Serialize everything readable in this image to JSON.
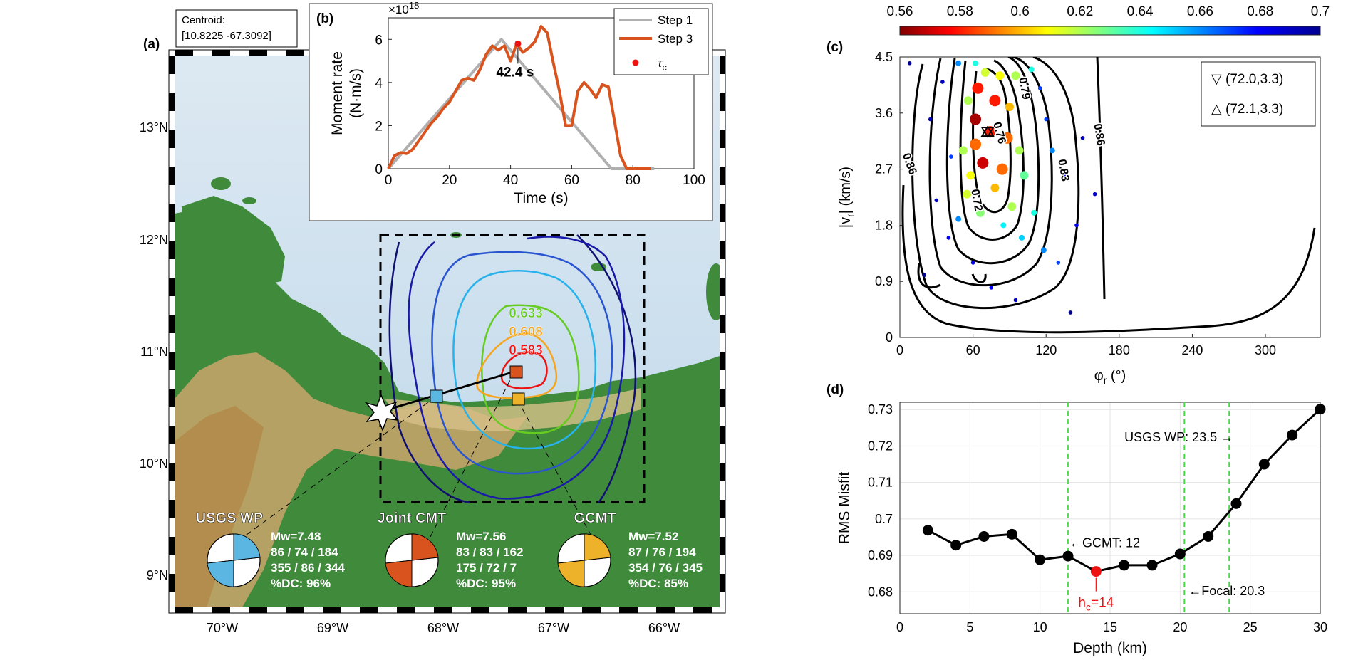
{
  "panel_a": {
    "label": "(a)",
    "centroid_label": "Centroid:",
    "centroid_value": "[10.8225  -67.3092]",
    "lat_ticks": [
      "13°N",
      "12°N",
      "11°N",
      "10°N",
      "9°N"
    ],
    "lon_ticks": [
      "70°W",
      "69°W",
      "68°W",
      "67°W",
      "66°W"
    ],
    "contour_labels": [
      {
        "text": "0.633",
        "color": "#66cc22"
      },
      {
        "text": "0.608",
        "color": "#f5a51e"
      },
      {
        "text": "0.583",
        "color": "#ee1111"
      }
    ],
    "colors": {
      "usgs": "#5cb6e2",
      "joint": "#d9531e",
      "gcmt": "#eeb12a"
    },
    "mechanisms": [
      {
        "name": "USGS WP",
        "lines": [
          "Mw=7.48",
          "86 / 74 / 184",
          "355 / 86 / 344",
          "%DC: 96%"
        ]
      },
      {
        "name": "Joint CMT",
        "lines": [
          "Mw=7.56",
          "83 / 83 / 162",
          "175 / 72 / 7",
          "%DC: 95%"
        ]
      },
      {
        "name": "GCMT",
        "lines": [
          "Mw=7.52",
          "87 / 76 / 194",
          "354 / 76 / 345",
          "%DC: 85%"
        ]
      }
    ]
  },
  "chart_data": [
    {
      "panel": "(b)",
      "type": "line",
      "xlabel": "Time (s)",
      "ylabel": "Moment rate (N·m/s)",
      "y_exponent": "×10^18",
      "xlim": [
        0,
        100
      ],
      "ylim": [
        0,
        7
      ],
      "xticks": [
        0,
        20,
        40,
        60,
        80,
        100
      ],
      "yticks": [
        0,
        2,
        4,
        6
      ],
      "series": [
        {
          "name": "Step 1",
          "color": "#b0b0b0",
          "x": [
            0,
            37,
            73,
            87
          ],
          "y": [
            0,
            6.0,
            0,
            0
          ]
        },
        {
          "name": "Step 3",
          "color": "#d9531e",
          "x": [
            0,
            2,
            4,
            6,
            8,
            10,
            12,
            14,
            16,
            18,
            20,
            22,
            24,
            26,
            28,
            30,
            32,
            34,
            36,
            38,
            40,
            42,
            44,
            46,
            48,
            50,
            52,
            54,
            56,
            58,
            60,
            62,
            64,
            66,
            68,
            70,
            72,
            74,
            76,
            78,
            80,
            82,
            84,
            86
          ],
          "y": [
            0,
            0.6,
            0.75,
            0.7,
            0.9,
            1.3,
            1.7,
            2.1,
            2.4,
            2.8,
            3.1,
            3.6,
            4.1,
            4.2,
            4.1,
            4.6,
            5.3,
            5.7,
            5.5,
            5.7,
            5.0,
            5.8,
            5.4,
            5.6,
            5.9,
            6.6,
            6.3,
            4.9,
            3.6,
            2.0,
            2.0,
            3.6,
            4.0,
            3.7,
            3.3,
            3.9,
            3.8,
            2.2,
            0.6,
            0,
            0,
            0,
            0,
            0
          ]
        }
      ],
      "tau_c": {
        "name": "τc",
        "x": 42.4,
        "y": 5.8,
        "label": "42.4 s",
        "color": "#ee1111"
      }
    },
    {
      "panel": "(c)",
      "type": "scatter",
      "xlabel": "φr (°)",
      "ylabel": "|vr| (km/s)",
      "xlim": [
        0,
        345
      ],
      "ylim": [
        0,
        4.5
      ],
      "xticks": [
        0,
        60,
        120,
        180,
        240,
        300
      ],
      "yticks": [
        0,
        0.9,
        1.8,
        2.7,
        3.6,
        4.5
      ],
      "colorbar": {
        "min": 0.56,
        "max": 0.7,
        "ticks": [
          0.56,
          0.58,
          0.6,
          0.62,
          0.64,
          0.66,
          0.68,
          0.7
        ]
      },
      "contour_labels": [
        "0.86",
        "0.72",
        "0.76",
        "0.79",
        "0.83",
        "0.86"
      ],
      "legend": [
        {
          "symbol": "▽",
          "label": "(72.0,3.3)"
        },
        {
          "symbol": "△",
          "label": "(72.1,3.3)"
        }
      ],
      "points": [
        {
          "x": 48,
          "y": 4.4,
          "v": 0.66
        },
        {
          "x": 62,
          "y": 4.4,
          "v": 0.64
        },
        {
          "x": 70,
          "y": 4.25,
          "v": 0.615
        },
        {
          "x": 82,
          "y": 4.2,
          "v": 0.61
        },
        {
          "x": 95,
          "y": 4.2,
          "v": 0.62
        },
        {
          "x": 108,
          "y": 4.3,
          "v": 0.64
        },
        {
          "x": 64,
          "y": 4.0,
          "v": 0.58
        },
        {
          "x": 78,
          "y": 3.8,
          "v": 0.58
        },
        {
          "x": 56,
          "y": 3.8,
          "v": 0.62
        },
        {
          "x": 90,
          "y": 3.7,
          "v": 0.6
        },
        {
          "x": 62,
          "y": 3.5,
          "v": 0.565
        },
        {
          "x": 74,
          "y": 3.3,
          "v": 0.58
        },
        {
          "x": 88,
          "y": 3.2,
          "v": 0.59
        },
        {
          "x": 52,
          "y": 3.0,
          "v": 0.62
        },
        {
          "x": 62,
          "y": 3.1,
          "v": 0.59
        },
        {
          "x": 98,
          "y": 3.0,
          "v": 0.62
        },
        {
          "x": 68,
          "y": 2.8,
          "v": 0.57
        },
        {
          "x": 84,
          "y": 2.7,
          "v": 0.59
        },
        {
          "x": 58,
          "y": 2.6,
          "v": 0.61
        },
        {
          "x": 102,
          "y": 2.6,
          "v": 0.63
        },
        {
          "x": 55,
          "y": 2.3,
          "v": 0.615
        },
        {
          "x": 78,
          "y": 2.4,
          "v": 0.6
        },
        {
          "x": 92,
          "y": 2.1,
          "v": 0.62
        },
        {
          "x": 66,
          "y": 2.0,
          "v": 0.625
        },
        {
          "x": 110,
          "y": 2.0,
          "v": 0.64
        },
        {
          "x": 48,
          "y": 1.9,
          "v": 0.66
        },
        {
          "x": 85,
          "y": 1.8,
          "v": 0.645
        },
        {
          "x": 100,
          "y": 1.6,
          "v": 0.65
        },
        {
          "x": 118,
          "y": 1.4,
          "v": 0.66
        },
        {
          "x": 40,
          "y": 1.6,
          "v": 0.68
        },
        {
          "x": 130,
          "y": 1.2,
          "v": 0.67
        },
        {
          "x": 145,
          "y": 1.8,
          "v": 0.68
        },
        {
          "x": 25,
          "y": 3.5,
          "v": 0.69
        },
        {
          "x": 30,
          "y": 2.2,
          "v": 0.69
        },
        {
          "x": 120,
          "y": 3.5,
          "v": 0.67
        },
        {
          "x": 135,
          "y": 2.6,
          "v": 0.68
        },
        {
          "x": 160,
          "y": 2.3,
          "v": 0.69
        },
        {
          "x": 20,
          "y": 1.0,
          "v": 0.7
        },
        {
          "x": 75,
          "y": 0.8,
          "v": 0.68
        },
        {
          "x": 140,
          "y": 0.4,
          "v": 0.7
        },
        {
          "x": 8,
          "y": 4.4,
          "v": 0.7
        },
        {
          "x": 35,
          "y": 4.1,
          "v": 0.69
        },
        {
          "x": 115,
          "y": 4.0,
          "v": 0.67
        },
        {
          "x": 125,
          "y": 3.0,
          "v": 0.66
        },
        {
          "x": 42,
          "y": 2.9,
          "v": 0.67
        },
        {
          "x": 150,
          "y": 3.2,
          "v": 0.69
        },
        {
          "x": 95,
          "y": 0.6,
          "v": 0.69
        },
        {
          "x": 60,
          "y": 1.2,
          "v": 0.68
        }
      ]
    },
    {
      "panel": "(d)",
      "type": "line",
      "xlabel": "Depth (km)",
      "ylabel": "RMS Misfit",
      "xlim": [
        0,
        30
      ],
      "ylim": [
        0.674,
        0.732
      ],
      "xticks": [
        0,
        5,
        10,
        15,
        20,
        25,
        30
      ],
      "yticks": [
        0.68,
        0.69,
        0.7,
        0.71,
        0.72,
        0.73
      ],
      "series": [
        {
          "name": "RMS misfit",
          "x": [
            2,
            4,
            6,
            8,
            10,
            12,
            14,
            16,
            18,
            20,
            22,
            24,
            26,
            28,
            30
          ],
          "y": [
            0.6969,
            0.6928,
            0.6952,
            0.6958,
            0.6888,
            0.6898,
            0.6856,
            0.6873,
            0.6873,
            0.6904,
            0.6952,
            0.7042,
            0.715,
            0.723,
            0.7301
          ]
        }
      ],
      "best": {
        "x": 14,
        "y": 0.6856,
        "label": "h",
        "label_sub": "c",
        "label_suffix": "=14"
      },
      "vlines": [
        {
          "x": 12,
          "label": "←GCMT: 12"
        },
        {
          "x": 20.3,
          "label": "←Focal: 20.3"
        },
        {
          "x": 23.5,
          "label": "USGS WP: 23.5 →"
        }
      ],
      "colors": {
        "vline": "#3ede3e",
        "best": "#ee1111"
      }
    }
  ]
}
